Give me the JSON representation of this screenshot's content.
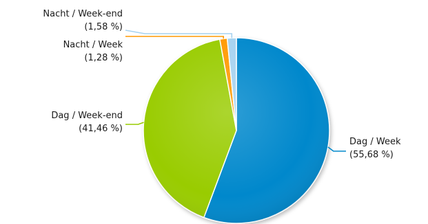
{
  "chart_data": {
    "type": "pie",
    "title": "",
    "slices": [
      {
        "label": "Dag / Week",
        "value": 55.68,
        "value_text": "(55,68 %)",
        "color": "#0088cc"
      },
      {
        "label": "Dag / Week-end",
        "value": 41.46,
        "value_text": "(41,46 %)",
        "color": "#99cc00"
      },
      {
        "label": "Nacht / Week",
        "value": 1.28,
        "value_text": "(1,28 %)",
        "color": "#ff9900"
      },
      {
        "label": "Nacht / Week-end",
        "value": 1.58,
        "value_text": "(1,58 %)",
        "color": "#a6d2f0"
      }
    ],
    "start_angle_deg": 0,
    "direction": "clockwise",
    "legend": "none"
  }
}
